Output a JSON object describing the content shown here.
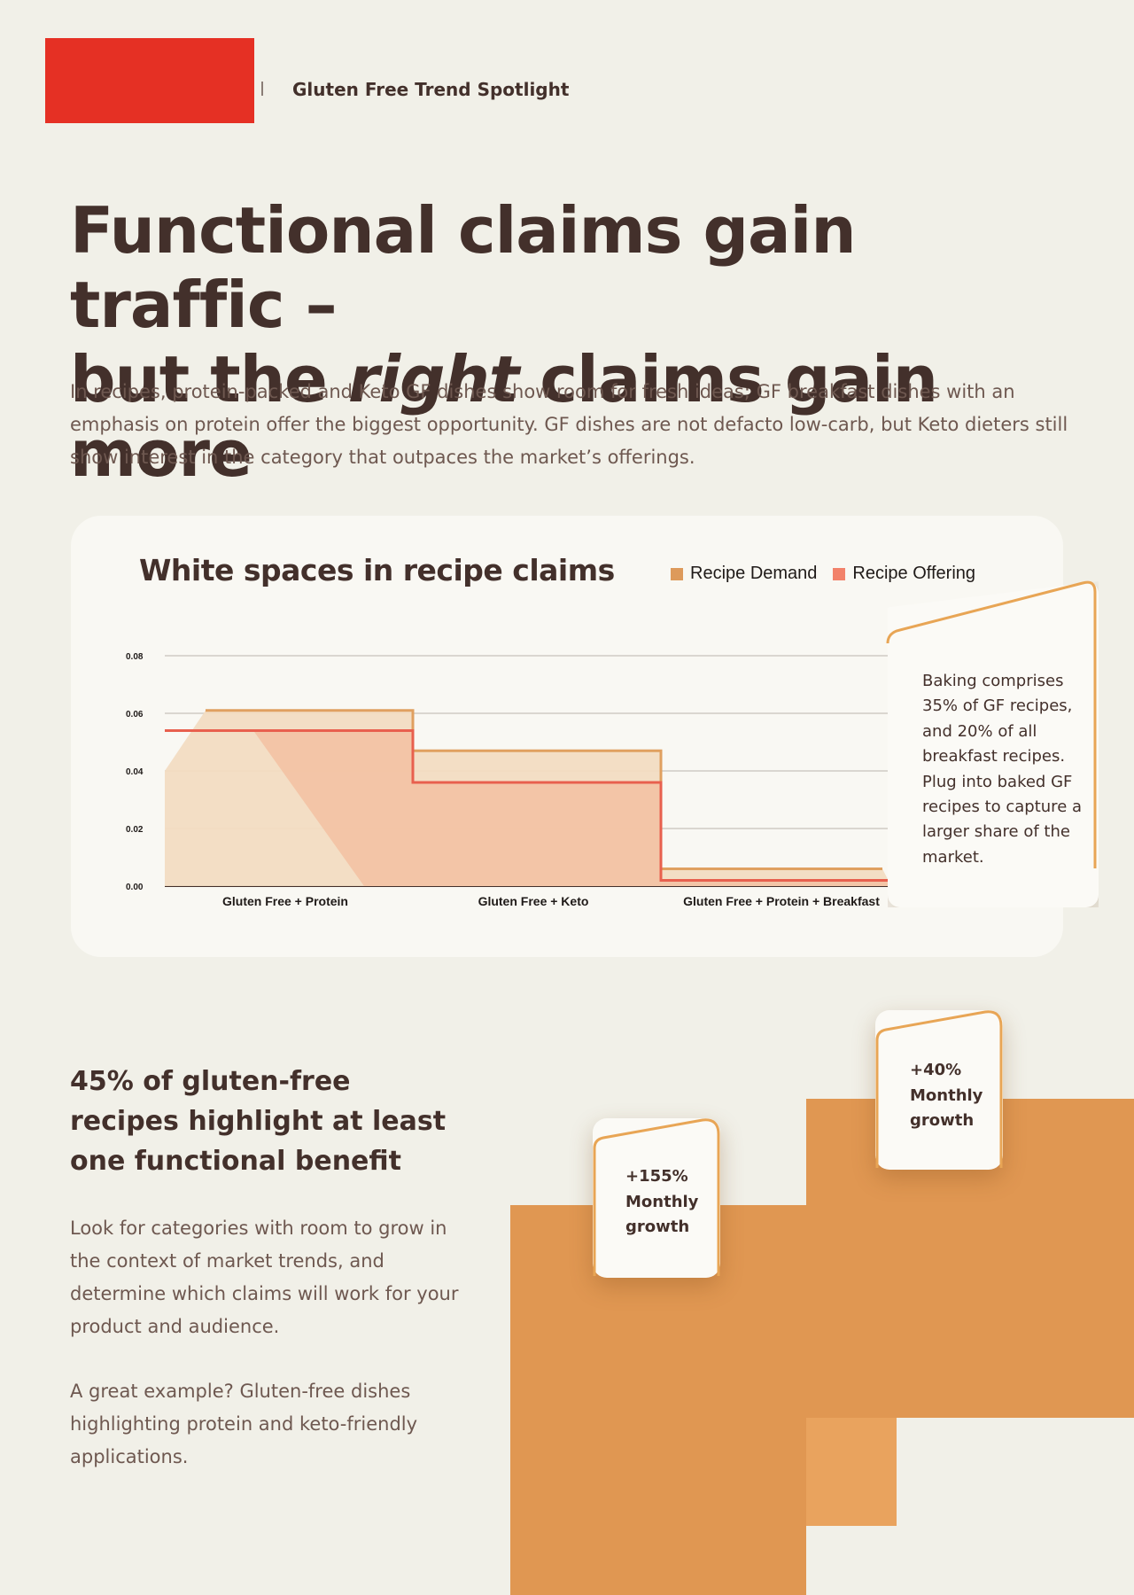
{
  "header": {
    "label": "Gluten Free Trend Spotlight",
    "brand_color": "#e53024"
  },
  "headline": {
    "line1": "Functional claims gain traffic –",
    "line2_before": "but the ",
    "line2_emphasis": "right",
    "line2_after": " claims gain more"
  },
  "intro": "In recipes, protein-packed and Keto GF dishes show room for fresh ideas; GF breakfast dishes with an emphasis on protein offer the biggest opportunity. GF dishes are not defacto low-carb, but Keto dieters still show interest in the category that outpaces the market’s offerings.",
  "chart_title": "White spaces in recipe claims",
  "chart_data": {
    "type": "area",
    "title": "White spaces in recipe claims",
    "categories": [
      "Gluten Free + Protein",
      "Gluten Free + Keto",
      "Gluten Free + Protein + Breakfast"
    ],
    "series": [
      {
        "name": "Recipe Demand",
        "color": "#e0a060",
        "values": [
          0.061,
          0.047,
          0.006
        ]
      },
      {
        "name": "Recipe Offering",
        "color": "#e8604e",
        "values": [
          0.054,
          0.036,
          0.002
        ]
      }
    ],
    "yticks": [
      "0.00",
      "0.02",
      "0.04",
      "0.06",
      "0.08"
    ],
    "ylim": [
      0,
      0.08
    ],
    "grid": true,
    "legend_position": "top-right"
  },
  "callout_baking": "Baking comprises 35% of GF recipes, and 20% of all breakfast recipes. Plug into baked GF recipes to capture a larger share of the market.",
  "section": {
    "title": "45% of gluten-free recipes highlight at least one functional benefit",
    "body1": "Look for categories with room to grow in the context of market trends, and determine which claims will work for your product and audience.",
    "body2": "A great example? Gluten-free dishes highlighting protein and keto-friendly applications."
  },
  "growth_cards": [
    {
      "value": "+155%",
      "line2": "Monthly",
      "line3": "growth"
    },
    {
      "value": "+40%",
      "line2": "Monthly",
      "line3": "growth"
    }
  ],
  "colors": {
    "bar": "#e09752",
    "accent_border": "#e8a555"
  }
}
